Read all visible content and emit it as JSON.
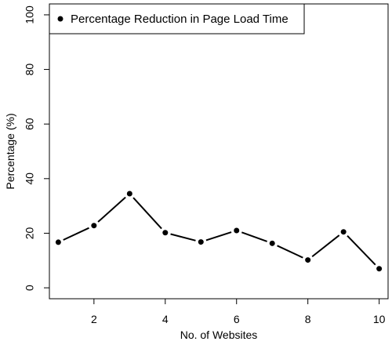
{
  "chart_data": {
    "type": "line",
    "xlabel": "No. of Websites",
    "ylabel": "Percentage (%)",
    "xlim": [
      0.75,
      10.25
    ],
    "ylim": [
      -4,
      104
    ],
    "xticks": [
      2,
      4,
      6,
      8,
      10
    ],
    "yticks": [
      0,
      20,
      40,
      60,
      80,
      100
    ],
    "x_tick_labels": [
      "2",
      "4",
      "6",
      "8",
      "10"
    ],
    "y_tick_labels": [
      "0",
      "20",
      "40",
      "60",
      "80",
      "100"
    ],
    "legend_position": "top-left",
    "grid": false,
    "series": [
      {
        "name": "Percentage Reduction in Page Load Time",
        "color": "#000000",
        "marker": "filled-circle",
        "x": [
          1,
          2,
          3,
          4,
          5,
          6,
          7,
          8,
          9,
          10
        ],
        "y": [
          16.7,
          22.8,
          34.5,
          20.2,
          16.8,
          21.0,
          16.3,
          10.2,
          20.5,
          7.0
        ]
      }
    ]
  }
}
